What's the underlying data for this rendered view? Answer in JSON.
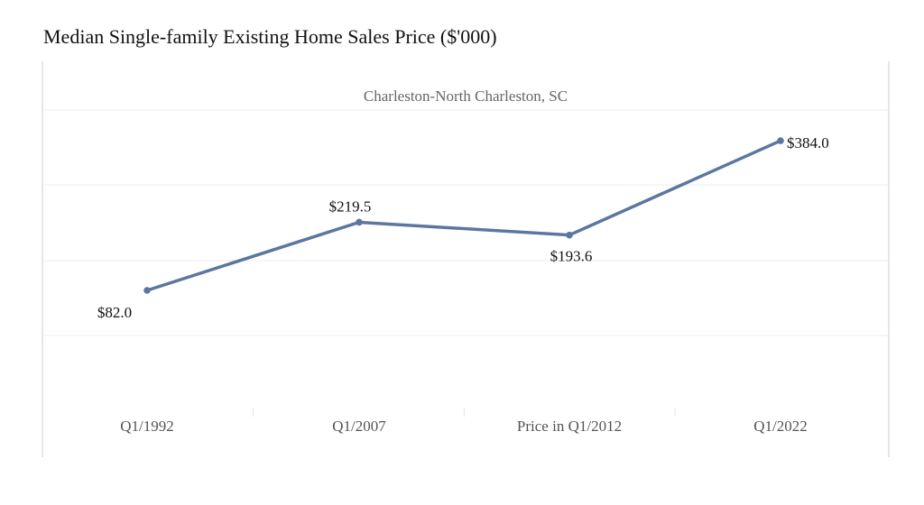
{
  "chart_data": {
    "type": "line",
    "title": "Median Single-family Existing Home Sales Price ($'000)",
    "subtitle": "Charleston-North Charleston, SC",
    "categories": [
      "Q1/1992",
      "Q1/2007",
      "Price in Q1/2012",
      "Q1/2022"
    ],
    "series": [
      {
        "values": [
          82.0,
          219.5,
          193.6,
          384.0
        ],
        "data_labels": [
          "$82.0",
          "$219.5",
          "$193.6",
          "$384.0"
        ]
      }
    ],
    "ylim": [
      -9,
      446
    ],
    "grid": true,
    "legend": "none",
    "xlabel": "",
    "ylabel": ""
  },
  "colors": {
    "line": "#5b77a0",
    "grid": "#ececec",
    "frame": "#cccccc"
  }
}
